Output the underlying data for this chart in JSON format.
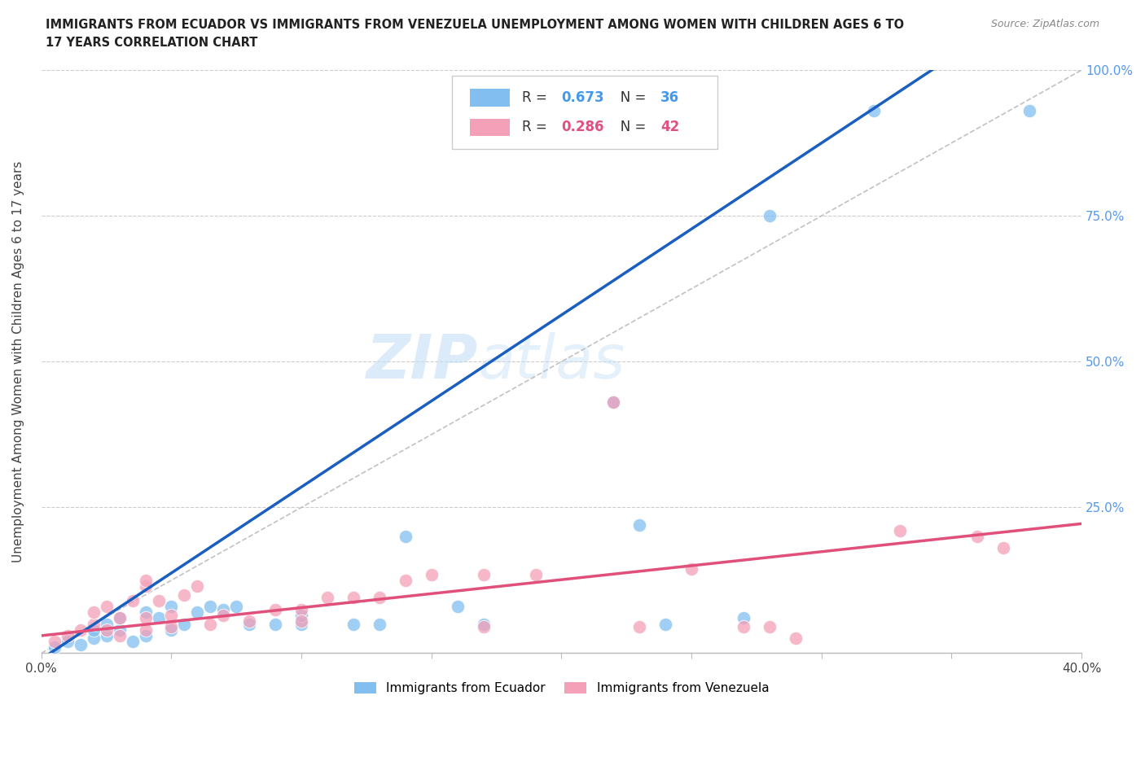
{
  "title_line1": "IMMIGRANTS FROM ECUADOR VS IMMIGRANTS FROM VENEZUELA UNEMPLOYMENT AMONG WOMEN WITH CHILDREN AGES 6 TO",
  "title_line2": "17 YEARS CORRELATION CHART",
  "source": "Source: ZipAtlas.com",
  "ylabel": "Unemployment Among Women with Children Ages 6 to 17 years",
  "x_min": 0.0,
  "x_max": 0.4,
  "y_min": 0.0,
  "y_max": 1.0,
  "y_ticks": [
    0.0,
    0.25,
    0.5,
    0.75,
    1.0
  ],
  "y_tick_labels": [
    "",
    "25.0%",
    "50.0%",
    "75.0%",
    "100.0%"
  ],
  "x_ticks": [
    0.0,
    0.05,
    0.1,
    0.15,
    0.2,
    0.25,
    0.3,
    0.35,
    0.4
  ],
  "ecuador_color": "#82bef0",
  "venezuela_color": "#f4a0b8",
  "ecuador_line_color": "#1a5fbf",
  "venezuela_line_color": "#e0507a",
  "diagonal_color": "#bbbbbb",
  "R_ecuador": 0.673,
  "N_ecuador": 36,
  "R_venezuela": 0.286,
  "N_venezuela": 42,
  "watermark_zip": "ZIP",
  "watermark_atlas": "atlas",
  "ecuador_slope": 2.95,
  "ecuador_intercept": -0.01,
  "venezuela_slope": 0.48,
  "venezuela_intercept": 0.03,
  "ecuador_points": [
    [
      0.005,
      0.01
    ],
    [
      0.01,
      0.02
    ],
    [
      0.015,
      0.015
    ],
    [
      0.02,
      0.025
    ],
    [
      0.02,
      0.04
    ],
    [
      0.025,
      0.03
    ],
    [
      0.025,
      0.05
    ],
    [
      0.03,
      0.04
    ],
    [
      0.03,
      0.06
    ],
    [
      0.035,
      0.02
    ],
    [
      0.04,
      0.03
    ],
    [
      0.04,
      0.07
    ],
    [
      0.045,
      0.06
    ],
    [
      0.05,
      0.04
    ],
    [
      0.05,
      0.08
    ],
    [
      0.055,
      0.05
    ],
    [
      0.06,
      0.07
    ],
    [
      0.065,
      0.08
    ],
    [
      0.07,
      0.075
    ],
    [
      0.075,
      0.08
    ],
    [
      0.08,
      0.05
    ],
    [
      0.09,
      0.05
    ],
    [
      0.1,
      0.05
    ],
    [
      0.1,
      0.065
    ],
    [
      0.12,
      0.05
    ],
    [
      0.13,
      0.05
    ],
    [
      0.14,
      0.2
    ],
    [
      0.16,
      0.08
    ],
    [
      0.17,
      0.05
    ],
    [
      0.22,
      0.43
    ],
    [
      0.23,
      0.22
    ],
    [
      0.24,
      0.05
    ],
    [
      0.27,
      0.06
    ],
    [
      0.28,
      0.75
    ],
    [
      0.32,
      0.93
    ],
    [
      0.38,
      0.93
    ]
  ],
  "venezuela_points": [
    [
      0.005,
      0.02
    ],
    [
      0.01,
      0.03
    ],
    [
      0.015,
      0.04
    ],
    [
      0.02,
      0.05
    ],
    [
      0.02,
      0.07
    ],
    [
      0.025,
      0.04
    ],
    [
      0.025,
      0.08
    ],
    [
      0.03,
      0.03
    ],
    [
      0.03,
      0.06
    ],
    [
      0.035,
      0.09
    ],
    [
      0.04,
      0.115
    ],
    [
      0.04,
      0.125
    ],
    [
      0.04,
      0.04
    ],
    [
      0.04,
      0.06
    ],
    [
      0.045,
      0.09
    ],
    [
      0.05,
      0.045
    ],
    [
      0.05,
      0.065
    ],
    [
      0.055,
      0.1
    ],
    [
      0.06,
      0.115
    ],
    [
      0.065,
      0.05
    ],
    [
      0.07,
      0.065
    ],
    [
      0.08,
      0.055
    ],
    [
      0.09,
      0.075
    ],
    [
      0.1,
      0.075
    ],
    [
      0.1,
      0.055
    ],
    [
      0.11,
      0.095
    ],
    [
      0.12,
      0.095
    ],
    [
      0.13,
      0.095
    ],
    [
      0.14,
      0.125
    ],
    [
      0.15,
      0.135
    ],
    [
      0.17,
      0.135
    ],
    [
      0.17,
      0.045
    ],
    [
      0.19,
      0.135
    ],
    [
      0.22,
      0.43
    ],
    [
      0.23,
      0.045
    ],
    [
      0.25,
      0.145
    ],
    [
      0.27,
      0.045
    ],
    [
      0.28,
      0.045
    ],
    [
      0.29,
      0.025
    ],
    [
      0.33,
      0.21
    ],
    [
      0.36,
      0.2
    ],
    [
      0.37,
      0.18
    ]
  ]
}
